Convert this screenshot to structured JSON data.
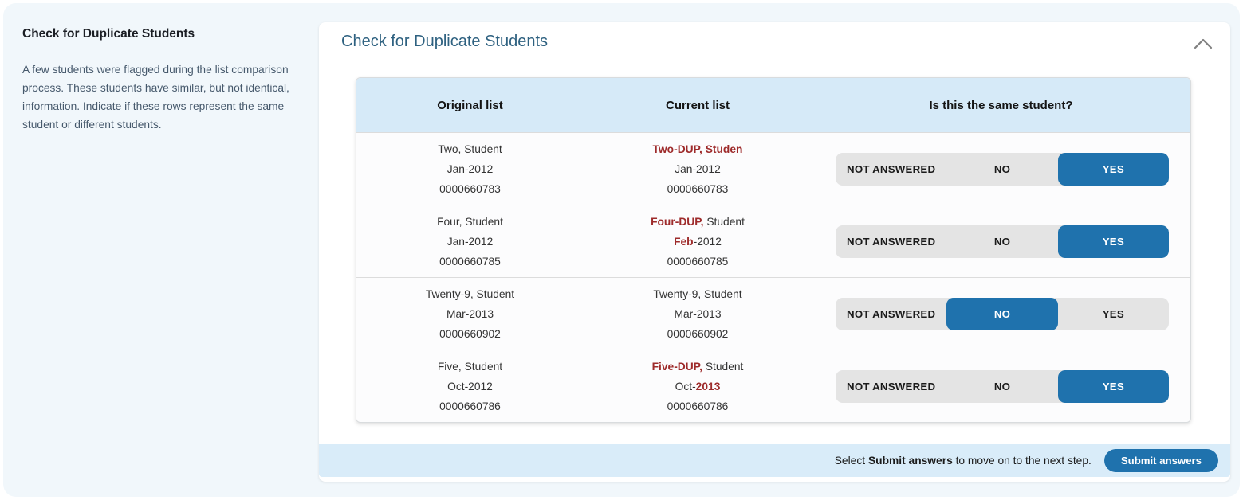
{
  "colors": {
    "accent_blue": "#1f72ad",
    "diff_highlight_red": "#9e2b2b",
    "table_header_bg": "#d6eaf8",
    "footer_bar_bg": "#d9ecf9",
    "page_bg": "#f1f7fb"
  },
  "sidebar": {
    "title": "Check for Duplicate Students",
    "description": "A few students were flagged during the list comparison process. These students have similar, but not identical, information. Indicate if these rows represent the same student or different students."
  },
  "card": {
    "title": "Check for Duplicate Students",
    "collapse_icon": "chevron-up"
  },
  "table": {
    "headers": [
      "Original list",
      "Current list",
      "Is this the same student?"
    ],
    "answer_options": [
      {
        "label": "NOT ANSWERED",
        "value": "not_answered"
      },
      {
        "label": "NO",
        "value": "no"
      },
      {
        "label": "YES",
        "value": "yes"
      }
    ],
    "rows": [
      {
        "original": [
          "Two, Student",
          "Jan-2012",
          "0000660783"
        ],
        "current": [
          [
            {
              "text": "Two-DUP, Studen",
              "highlight": true
            }
          ],
          [
            {
              "text": "Jan-2012"
            }
          ],
          [
            {
              "text": "0000660783"
            }
          ]
        ],
        "answer": "yes"
      },
      {
        "original": [
          "Four, Student",
          "Jan-2012",
          "0000660785"
        ],
        "current": [
          [
            {
              "text": "Four-DUP,",
              "highlight": true
            },
            {
              "text": " Student"
            }
          ],
          [
            {
              "text": "Feb",
              "highlight": true
            },
            {
              "text": "-2012"
            }
          ],
          [
            {
              "text": "0000660785"
            }
          ]
        ],
        "answer": "yes"
      },
      {
        "original": [
          "Twenty-9, Student",
          "Mar-2013",
          "0000660902"
        ],
        "current": [
          [
            {
              "text": "Twenty-9, Student"
            }
          ],
          [
            {
              "text": "Mar-2013"
            }
          ],
          [
            {
              "text": "0000660902"
            }
          ]
        ],
        "answer": "no"
      },
      {
        "original": [
          "Five, Student",
          "Oct-2012",
          "0000660786"
        ],
        "current": [
          [
            {
              "text": "Five-DUP,",
              "highlight": true
            },
            {
              "text": " Student"
            }
          ],
          [
            {
              "text": "Oct-"
            },
            {
              "text": "2013",
              "highlight": true
            }
          ],
          [
            {
              "text": "0000660786"
            }
          ]
        ],
        "answer": "yes"
      }
    ]
  },
  "footer": {
    "note_prefix": "Select",
    "note_bold": "Submit answers",
    "note_suffix": "to move on to the next step.",
    "submit_label": "Submit answers"
  }
}
